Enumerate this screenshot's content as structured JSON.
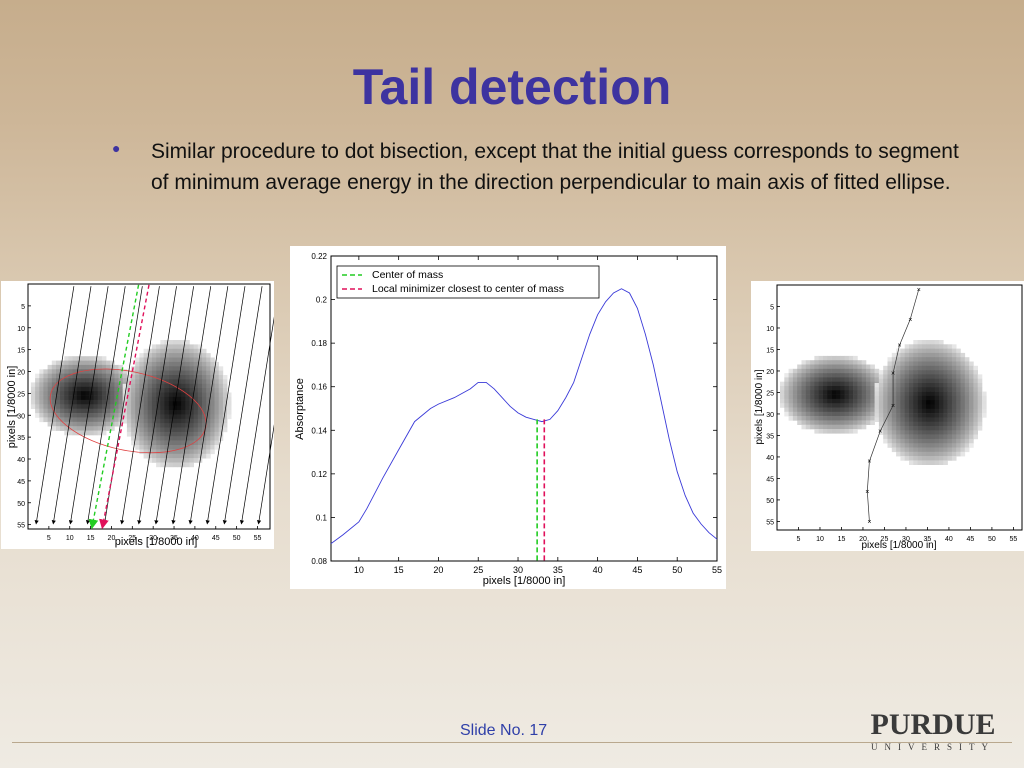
{
  "slide": {
    "title": "Tail detection",
    "bullet": "Similar procedure to dot bisection, except that the initial guess corresponds to segment of minimum average energy in the direction perpendicular to main axis of fitted ellipse.",
    "slide_number": "Slide No. 17",
    "logo_top": "PURDUE",
    "logo_bottom": "UNIVERSITY"
  },
  "colors": {
    "title": "#3d33a0",
    "curve": "#3a3ad8",
    "center_line": "#22cc22",
    "minimizer_line": "#e0105a"
  },
  "chart_data": [
    {
      "type": "heatmap",
      "name": "left-image",
      "xlabel": "pixels [1/8000 in]",
      "ylabel": "pixels [1/8000 in]",
      "xticks": [
        5,
        10,
        15,
        20,
        25,
        30,
        35,
        40,
        45,
        50,
        55
      ],
      "yticks": [
        5,
        10,
        15,
        20,
        25,
        30,
        35,
        40,
        45,
        50,
        55
      ],
      "xlim": [
        0,
        58
      ],
      "ylim": [
        0,
        56
      ],
      "blobs": [
        {
          "cx": 13,
          "cy": 25,
          "rx": 7,
          "ry": 5
        },
        {
          "cx": 35,
          "cy": 27,
          "rx": 7,
          "ry": 8
        }
      ],
      "ellipse": {
        "cx": 24,
        "cy": 29,
        "rx": 19,
        "ry": 9
      }
    },
    {
      "type": "line",
      "xlabel": "pixels [1/8000 in]",
      "ylabel": "Absorptance",
      "xlim": [
        6.5,
        55
      ],
      "ylim": [
        0.08,
        0.22
      ],
      "xticks": [
        10,
        15,
        20,
        25,
        30,
        35,
        40,
        45,
        50,
        55
      ],
      "yticks": [
        0.08,
        0.1,
        0.12,
        0.14,
        0.16,
        0.18,
        0.2,
        0.22
      ],
      "legend": [
        "Center of mass",
        "Local minimizer closest to center of mass"
      ],
      "vlines": [
        {
          "name": "Center of mass",
          "x": 32.4
        },
        {
          "name": "Local minimizer closest to center of mass",
          "x": 33.3
        }
      ],
      "x": [
        6.5,
        8,
        10,
        11,
        13,
        15,
        17,
        19,
        20,
        22,
        24,
        25,
        26,
        27,
        28,
        29,
        30,
        31,
        32,
        33,
        34,
        35,
        36,
        37,
        38,
        39,
        40,
        41,
        42,
        43,
        44,
        45,
        46,
        47,
        48,
        49,
        50,
        51,
        52,
        53,
        54,
        55
      ],
      "y": [
        0.088,
        0.092,
        0.098,
        0.104,
        0.118,
        0.131,
        0.144,
        0.15,
        0.152,
        0.155,
        0.159,
        0.162,
        0.162,
        0.159,
        0.155,
        0.151,
        0.148,
        0.146,
        0.145,
        0.144,
        0.145,
        0.149,
        0.155,
        0.162,
        0.173,
        0.184,
        0.193,
        0.199,
        0.203,
        0.205,
        0.203,
        0.196,
        0.184,
        0.17,
        0.153,
        0.136,
        0.121,
        0.11,
        0.102,
        0.097,
        0.093,
        0.09
      ]
    },
    {
      "type": "heatmap",
      "name": "right-image",
      "xlabel": "pixels [1/8000 in]",
      "ylabel": "pixels [1/8000 in]",
      "xticks": [
        5,
        10,
        15,
        20,
        25,
        30,
        35,
        40,
        45,
        50,
        55
      ],
      "yticks": [
        5,
        10,
        15,
        20,
        25,
        30,
        35,
        40,
        45,
        50,
        55
      ],
      "xlim": [
        0,
        57
      ],
      "ylim": [
        0,
        57
      ],
      "blobs": [
        {
          "cx": 13,
          "cy": 25,
          "rx": 7,
          "ry": 5
        },
        {
          "cx": 35,
          "cy": 27,
          "rx": 7,
          "ry": 8
        }
      ],
      "path": [
        [
          33,
          1
        ],
        [
          31,
          8
        ],
        [
          28.5,
          14
        ],
        [
          27,
          20.5
        ],
        [
          27,
          28
        ],
        [
          24,
          34
        ],
        [
          21.5,
          41
        ],
        [
          21,
          48
        ],
        [
          21.5,
          55
        ]
      ]
    }
  ]
}
